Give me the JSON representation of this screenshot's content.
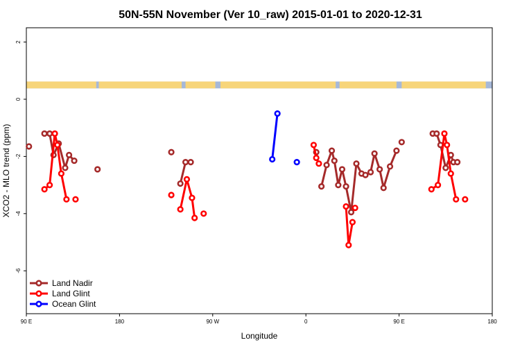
{
  "chart_data": {
    "type": "line",
    "title": "50N-55N November (Ver 10_raw)   2015-01-01 to 2020-12-31",
    "xlabel": "Longitude",
    "ylabel": "XCO2 - MLO trend (ppm)",
    "xlim": [
      90,
      450
    ],
    "ylim": [
      -7.5,
      2.5
    ],
    "x_ticks": [
      {
        "value": 90,
        "label": "90 E"
      },
      {
        "value": 162,
        "label": "180"
      },
      {
        "value": 234,
        "label": "90 W"
      },
      {
        "value": 306,
        "label": "0"
      },
      {
        "value": 378,
        "label": "90 E"
      },
      {
        "value": 450,
        "label": "180"
      }
    ],
    "y_ticks": [
      {
        "value": 2,
        "label": "2"
      },
      {
        "value": 0,
        "label": "0"
      },
      {
        "value": -2,
        "label": "-2"
      },
      {
        "value": -4,
        "label": "-4"
      },
      {
        "value": -6,
        "label": "-6"
      }
    ],
    "land_band": {
      "y_top": 0.62,
      "y_bottom": 0.38,
      "ocean_color": "#a6b8d8",
      "land_color": "#f7d57a",
      "land_ranges": [
        [
          90,
          144
        ],
        [
          146,
          210
        ],
        [
          213,
          236
        ],
        [
          240,
          329
        ],
        [
          332,
          376
        ],
        [
          380,
          445
        ]
      ]
    },
    "legend": {
      "position": "bottom-left",
      "entries": [
        {
          "label": "Land Nadir",
          "color": "#a52a2a"
        },
        {
          "label": "Land Glint",
          "color": "#ff0000"
        },
        {
          "label": "Ocean Glint",
          "color": "#0000ff"
        }
      ]
    },
    "series": [
      {
        "name": "Land Nadir",
        "color": "#a52a2a",
        "x": [
          92,
          104,
          108,
          111,
          115,
          120,
          123,
          127,
          145,
          202,
          209,
          213,
          217,
          314,
          318,
          322,
          326,
          328,
          331,
          334,
          337,
          341,
          345,
          349,
          352,
          356,
          359,
          363,
          366,
          371,
          376,
          380,
          404,
          407,
          410,
          414,
          418,
          420,
          423,
          452
        ],
        "y": [
          -1.65,
          -1.2,
          -1.2,
          -1.95,
          -1.55,
          -2.4,
          -1.95,
          -2.15,
          -2.45,
          -1.85,
          -2.95,
          -2.2,
          -2.2,
          -1.85,
          -3.05,
          -2.3,
          -1.8,
          -2.15,
          -3.0,
          -2.45,
          -3.05,
          -3.95,
          -2.25,
          -2.6,
          -2.65,
          -2.55,
          -1.9,
          -2.45,
          -3.1,
          -2.35,
          -1.8,
          -1.5,
          -1.2,
          -1.2,
          -1.6,
          -2.4,
          -1.95,
          -2.2,
          -2.2,
          -2.45
        ],
        "segments": [
          [
            1,
            7
          ],
          [
            10,
            12
          ],
          [
            14,
            30
          ],
          [
            32,
            37
          ]
        ]
      },
      {
        "name": "Land Glint",
        "color": "#ff0000",
        "x": [
          104,
          108,
          112,
          114,
          117,
          121,
          128,
          202,
          209,
          214,
          218,
          220,
          227,
          312,
          314,
          316,
          337,
          339,
          342,
          344,
          403,
          408,
          413,
          415,
          418,
          422,
          429
        ],
        "y": [
          -3.15,
          -3.0,
          -1.2,
          -1.6,
          -2.6,
          -3.5,
          -3.5,
          -3.35,
          -3.85,
          -2.8,
          -3.45,
          -4.15,
          -4.0,
          -1.6,
          -2.05,
          -2.25,
          -3.75,
          -5.1,
          -4.3,
          -3.8,
          -3.15,
          -3.0,
          -1.2,
          -1.6,
          -2.6,
          -3.5,
          -3.5
        ],
        "segments": [
          [
            0,
            5
          ],
          [
            8,
            11
          ],
          [
            13,
            15
          ],
          [
            16,
            18
          ],
          [
            20,
            25
          ]
        ]
      },
      {
        "name": "Ocean Glint",
        "color": "#0000ff",
        "x": [
          280,
          284,
          299
        ],
        "y": [
          -2.1,
          -0.5,
          -2.2
        ],
        "segments": [
          [
            0,
            1
          ]
        ]
      }
    ]
  }
}
